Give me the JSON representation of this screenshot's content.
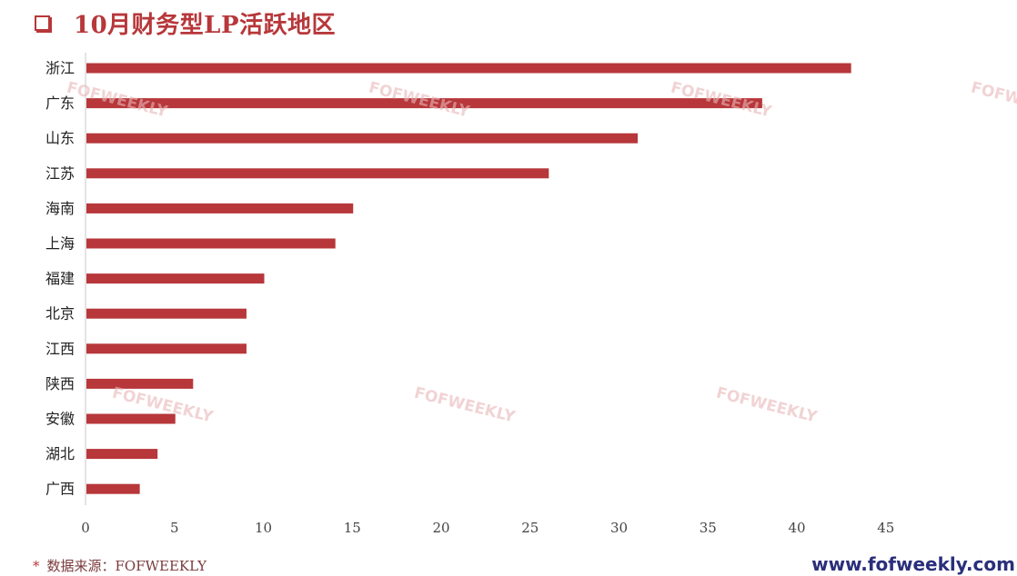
{
  "title": "10月财务型LP活跃地区",
  "watermark": "FOFWEEKLY",
  "source": {
    "star": "*",
    "text": "数据来源：FOFWEEKLY"
  },
  "website": "www.fofweekly.com",
  "colors": {
    "bar": "#b7373a",
    "title": "#b7373a"
  },
  "chart_data": {
    "type": "bar",
    "orientation": "horizontal",
    "title": "10月财务型LP活跃地区",
    "categories": [
      "浙江",
      "广东",
      "山东",
      "江苏",
      "海南",
      "上海",
      "福建",
      "北京",
      "江西",
      "陕西",
      "安徽",
      "湖北",
      "广西"
    ],
    "values": [
      43,
      38,
      31,
      26,
      15,
      14,
      10,
      9,
      9,
      6,
      5,
      4,
      3
    ],
    "xlim": [
      0,
      45
    ],
    "xticks": [
      0,
      5,
      10,
      15,
      20,
      25,
      30,
      35,
      40,
      45
    ],
    "grid": false,
    "legend": "none"
  }
}
